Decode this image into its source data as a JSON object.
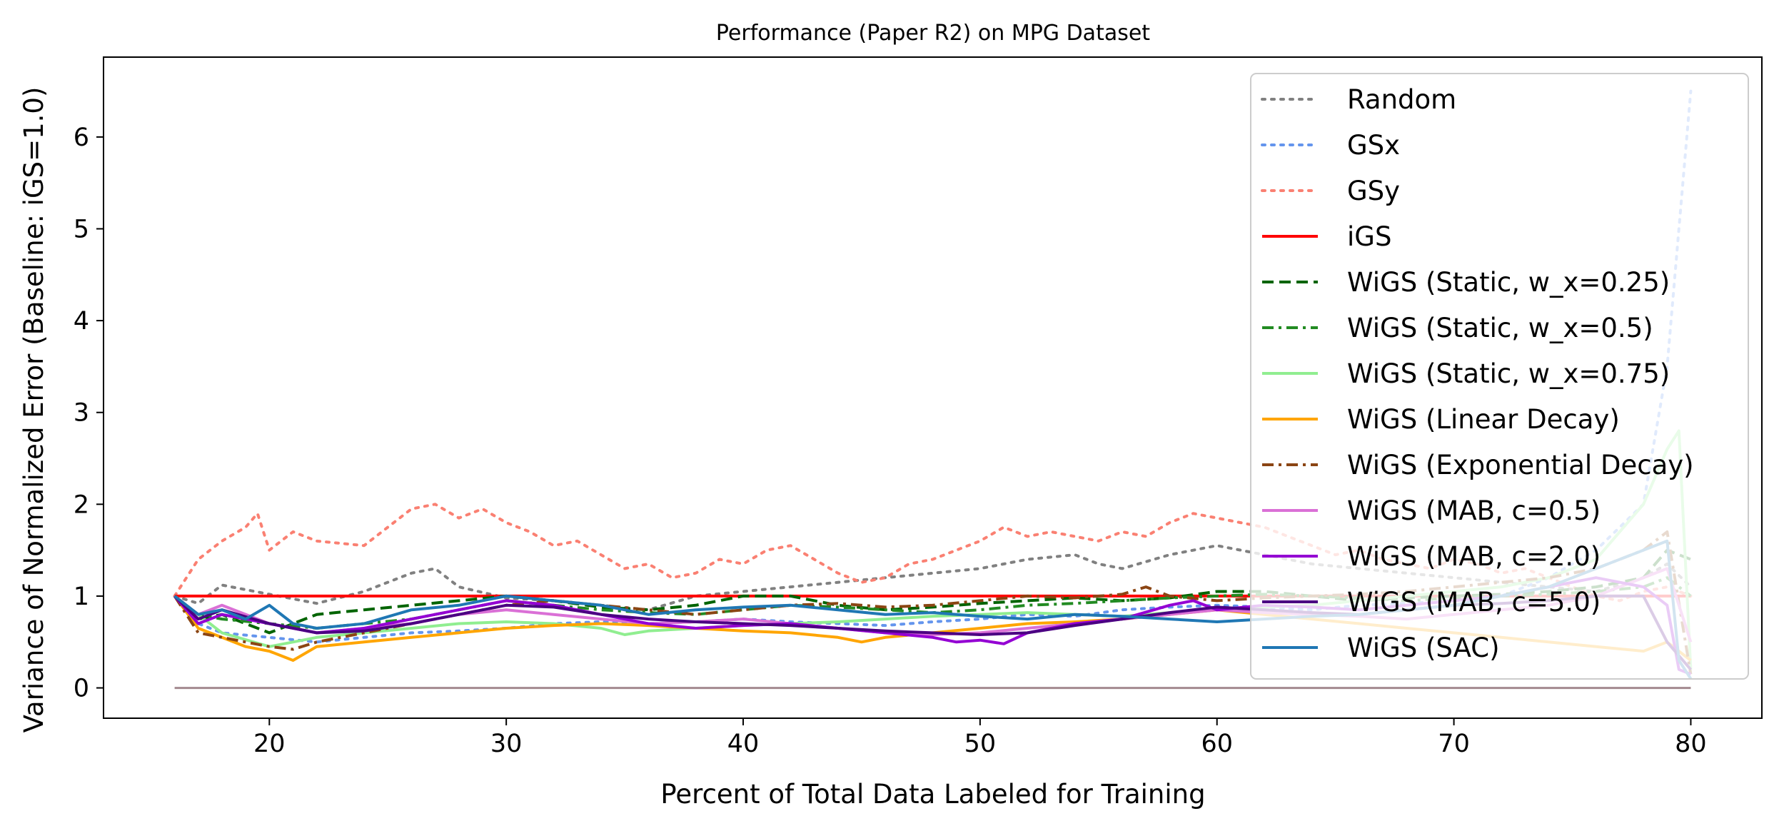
{
  "chart_data": {
    "type": "line",
    "title": "Performance (Paper R2) on MPG Dataset",
    "xlabel": "Percent of Total Data Labeled for Training",
    "ylabel": "Variance of Normalized Error (Baseline: iGS=1.0)",
    "xlim": [
      13,
      83
    ],
    "ylim": [
      -0.33,
      6.87
    ],
    "xticks": [
      20,
      30,
      40,
      50,
      60,
      70,
      80
    ],
    "yticks": [
      0,
      1,
      2,
      3,
      4,
      5,
      6
    ],
    "grid": false,
    "legend_position": "upper right",
    "series": [
      {
        "name": "Random",
        "color": "#808080",
        "style": "dotted",
        "x": [
          16,
          17,
          18,
          20,
          22,
          24,
          26,
          27,
          28,
          30,
          32,
          34,
          36,
          38,
          40,
          42,
          44,
          46,
          48,
          50,
          52,
          54,
          55,
          56,
          58,
          60,
          62,
          64,
          66,
          68,
          70,
          72,
          74,
          76,
          78,
          79,
          80
        ],
        "y": [
          1.0,
          0.92,
          1.12,
          1.02,
          0.92,
          1.05,
          1.25,
          1.3,
          1.1,
          0.98,
          0.95,
          0.9,
          0.85,
          1.0,
          1.05,
          1.1,
          1.15,
          1.2,
          1.25,
          1.3,
          1.4,
          1.45,
          1.35,
          1.3,
          1.45,
          1.55,
          1.45,
          1.35,
          1.3,
          1.25,
          1.2,
          1.15,
          1.1,
          1.05,
          1.2,
          1.35,
          1.1
        ]
      },
      {
        "name": "GSx",
        "color": "#6495ed",
        "style": "dotted",
        "x": [
          16,
          17,
          18,
          20,
          22,
          24,
          26,
          28,
          30,
          32,
          34,
          36,
          38,
          40,
          42,
          44,
          46,
          48,
          50,
          52,
          54,
          56,
          58,
          60,
          62,
          64,
          66,
          68,
          70,
          72,
          74,
          76,
          78,
          79,
          79.5,
          80
        ],
        "y": [
          1.0,
          0.7,
          0.6,
          0.55,
          0.5,
          0.55,
          0.6,
          0.62,
          0.65,
          0.7,
          0.72,
          0.7,
          0.72,
          0.75,
          0.72,
          0.7,
          0.68,
          0.72,
          0.75,
          0.8,
          0.78,
          0.85,
          0.88,
          0.9,
          0.88,
          0.85,
          0.9,
          0.92,
          0.95,
          1.0,
          1.2,
          1.5,
          2.0,
          3.5,
          5.0,
          6.5
        ]
      },
      {
        "name": "GSy",
        "color": "#fa8072",
        "style": "dotted",
        "x": [
          16,
          17,
          18,
          19,
          19.5,
          20,
          21,
          22,
          24,
          25,
          26,
          27,
          28,
          29,
          30,
          31,
          32,
          33,
          34,
          35,
          36,
          37,
          38,
          39,
          40,
          41,
          42,
          43,
          44,
          45,
          46,
          47,
          48,
          49,
          50,
          51,
          52,
          53,
          54,
          55,
          56,
          57,
          58,
          59,
          60,
          61,
          62,
          63,
          64,
          65,
          66,
          67,
          68,
          69,
          70,
          71,
          72,
          73,
          74,
          75,
          76,
          77,
          78,
          79,
          80
        ],
        "y": [
          1.0,
          1.4,
          1.6,
          1.75,
          1.9,
          1.5,
          1.7,
          1.6,
          1.55,
          1.75,
          1.95,
          2.0,
          1.85,
          1.95,
          1.8,
          1.7,
          1.55,
          1.6,
          1.45,
          1.3,
          1.35,
          1.2,
          1.25,
          1.4,
          1.35,
          1.5,
          1.55,
          1.4,
          1.25,
          1.15,
          1.2,
          1.35,
          1.4,
          1.5,
          1.6,
          1.75,
          1.65,
          1.7,
          1.65,
          1.6,
          1.7,
          1.65,
          1.8,
          1.9,
          1.85,
          1.8,
          1.75,
          1.65,
          1.55,
          1.45,
          1.5,
          1.4,
          1.35,
          1.3,
          1.4,
          1.35,
          1.25,
          1.3,
          1.2,
          1.1,
          1.0,
          0.95,
          1.05,
          1.1,
          1.0
        ]
      },
      {
        "name": "iGS",
        "color": "#ff0000",
        "style": "solid",
        "x": [
          16,
          80
        ],
        "y": [
          1.0,
          1.0
        ]
      },
      {
        "name": "WiGS (Static, w_x=0.25)",
        "color": "#006400",
        "style": "dashed",
        "x": [
          16,
          17,
          18,
          19,
          20,
          22,
          24,
          26,
          28,
          30,
          32,
          34,
          36,
          38,
          40,
          42,
          44,
          46,
          48,
          50,
          52,
          54,
          56,
          58,
          60,
          62,
          64,
          66,
          68,
          70,
          72,
          74,
          76,
          78,
          79,
          80
        ],
        "y": [
          1.0,
          0.75,
          0.8,
          0.7,
          0.6,
          0.8,
          0.85,
          0.9,
          0.95,
          1.0,
          0.95,
          0.88,
          0.85,
          0.9,
          1.0,
          1.0,
          0.9,
          0.85,
          0.88,
          0.92,
          0.95,
          0.98,
          0.95,
          0.98,
          1.05,
          1.05,
          1.0,
          0.95,
          0.98,
          1.0,
          1.02,
          1.05,
          1.1,
          1.2,
          1.5,
          1.4
        ]
      },
      {
        "name": "WiGS (Static, w_x=0.5)",
        "color": "#228b22",
        "style": "dashdot",
        "x": [
          16,
          17,
          18,
          20,
          22,
          24,
          26,
          28,
          30,
          32,
          34,
          36,
          38,
          40,
          42,
          44,
          46,
          48,
          50,
          52,
          54,
          56,
          58,
          60,
          62,
          64,
          66,
          68,
          70,
          72,
          74,
          76,
          78,
          79,
          80
        ],
        "y": [
          1.0,
          0.8,
          0.75,
          0.7,
          0.65,
          0.7,
          0.75,
          0.85,
          0.95,
          0.9,
          0.85,
          0.82,
          0.8,
          0.85,
          0.9,
          0.88,
          0.85,
          0.82,
          0.85,
          0.9,
          0.92,
          0.95,
          0.98,
          1.0,
          1.02,
          1.0,
          0.98,
          0.95,
          0.98,
          1.0,
          1.02,
          1.05,
          1.1,
          1.2,
          1.0
        ]
      },
      {
        "name": "WiGS (Static, w_x=0.75)",
        "color": "#90ee90",
        "style": "solid",
        "x": [
          16,
          17,
          18,
          20,
          21,
          22,
          24,
          26,
          28,
          30,
          32,
          34,
          35,
          36,
          38,
          40,
          42,
          44,
          46,
          48,
          50,
          52,
          54,
          56,
          58,
          60,
          62,
          64,
          66,
          68,
          70,
          72,
          74,
          76,
          78,
          79,
          79.5,
          80
        ],
        "y": [
          1.0,
          0.8,
          0.6,
          0.45,
          0.5,
          0.55,
          0.6,
          0.65,
          0.7,
          0.72,
          0.7,
          0.65,
          0.58,
          0.62,
          0.65,
          0.68,
          0.7,
          0.72,
          0.75,
          0.78,
          0.8,
          0.82,
          0.8,
          0.78,
          0.82,
          0.85,
          0.88,
          0.9,
          0.95,
          1.0,
          1.05,
          1.1,
          1.2,
          1.4,
          2.0,
          2.6,
          2.8,
          0.2
        ]
      },
      {
        "name": "WiGS (Linear Decay)",
        "color": "#ffa500",
        "style": "solid",
        "x": [
          16,
          17,
          18,
          19,
          20,
          21,
          22,
          24,
          26,
          28,
          30,
          32,
          34,
          36,
          38,
          40,
          42,
          44,
          45,
          46,
          48,
          50,
          52,
          54,
          56,
          58,
          60,
          62,
          64,
          66,
          68,
          70,
          72,
          74,
          76,
          78,
          79,
          80
        ],
        "y": [
          1.0,
          0.65,
          0.55,
          0.45,
          0.4,
          0.3,
          0.45,
          0.5,
          0.55,
          0.6,
          0.65,
          0.68,
          0.7,
          0.68,
          0.65,
          0.62,
          0.6,
          0.55,
          0.5,
          0.55,
          0.6,
          0.65,
          0.7,
          0.72,
          0.75,
          0.8,
          0.85,
          0.8,
          0.75,
          0.7,
          0.65,
          0.6,
          0.55,
          0.5,
          0.45,
          0.4,
          0.5,
          0.3
        ]
      },
      {
        "name": "WiGS (Exponential Decay)",
        "color": "#8b4513",
        "style": "dashdot",
        "x": [
          16,
          17,
          18,
          19,
          20,
          21,
          22,
          24,
          26,
          28,
          30,
          32,
          34,
          36,
          38,
          40,
          42,
          44,
          46,
          48,
          50,
          52,
          54,
          56,
          57,
          58,
          60,
          62,
          64,
          66,
          68,
          70,
          72,
          74,
          76,
          78,
          79,
          80
        ],
        "y": [
          1.0,
          0.6,
          0.55,
          0.5,
          0.45,
          0.42,
          0.5,
          0.6,
          0.7,
          0.8,
          0.9,
          0.95,
          0.9,
          0.85,
          0.8,
          0.85,
          0.9,
          0.92,
          0.88,
          0.9,
          0.95,
          1.0,
          0.98,
          1.02,
          1.1,
          1.0,
          0.95,
          0.98,
          1.0,
          1.02,
          1.05,
          1.1,
          1.15,
          1.2,
          1.3,
          1.5,
          1.7,
          0.15
        ]
      },
      {
        "name": "WiGS (MAB, c=0.5)",
        "color": "#da70d6",
        "style": "solid",
        "x": [
          16,
          17,
          18,
          20,
          22,
          24,
          26,
          28,
          30,
          32,
          34,
          36,
          38,
          40,
          42,
          44,
          46,
          48,
          50,
          52,
          54,
          56,
          58,
          60,
          62,
          64,
          66,
          68,
          70,
          72,
          74,
          76,
          78,
          79,
          80
        ],
        "y": [
          1.0,
          0.8,
          0.9,
          0.7,
          0.6,
          0.65,
          0.7,
          0.8,
          0.85,
          0.8,
          0.75,
          0.7,
          0.72,
          0.75,
          0.7,
          0.65,
          0.6,
          0.58,
          0.6,
          0.65,
          0.7,
          0.75,
          0.8,
          0.85,
          0.82,
          0.8,
          0.78,
          0.75,
          0.8,
          0.85,
          0.9,
          1.0,
          1.2,
          1.3,
          0.5
        ]
      },
      {
        "name": "WiGS (MAB, c=2.0)",
        "color": "#9400d3",
        "style": "solid",
        "x": [
          16,
          17,
          18,
          19,
          20,
          22,
          24,
          26,
          28,
          30,
          32,
          34,
          36,
          38,
          40,
          42,
          44,
          46,
          48,
          49,
          50,
          51,
          52,
          54,
          56,
          58,
          59,
          60,
          62,
          64,
          66,
          68,
          70,
          72,
          74,
          76,
          78,
          79,
          79.5,
          80
        ],
        "y": [
          1.0,
          0.7,
          0.8,
          0.75,
          0.7,
          0.6,
          0.65,
          0.75,
          0.85,
          0.95,
          0.9,
          0.8,
          0.7,
          0.65,
          0.68,
          0.7,
          0.65,
          0.6,
          0.55,
          0.5,
          0.52,
          0.48,
          0.6,
          0.7,
          0.75,
          0.9,
          0.95,
          0.85,
          0.9,
          0.88,
          0.85,
          0.9,
          0.95,
          1.0,
          1.1,
          1.2,
          1.1,
          0.9,
          0.2,
          0.15
        ]
      },
      {
        "name": "WiGS (MAB, c=5.0)",
        "color": "#4b0082",
        "style": "solid",
        "x": [
          16,
          17,
          18,
          20,
          22,
          24,
          26,
          28,
          30,
          32,
          34,
          36,
          38,
          40,
          42,
          44,
          46,
          48,
          50,
          52,
          54,
          56,
          58,
          60,
          62,
          64,
          66,
          68,
          70,
          72,
          74,
          76,
          78,
          79,
          80
        ],
        "y": [
          1.0,
          0.75,
          0.85,
          0.7,
          0.6,
          0.62,
          0.7,
          0.8,
          0.9,
          0.88,
          0.8,
          0.75,
          0.72,
          0.7,
          0.68,
          0.65,
          0.62,
          0.6,
          0.58,
          0.6,
          0.68,
          0.75,
          0.82,
          0.88,
          0.85,
          0.82,
          0.8,
          0.85,
          0.9,
          0.92,
          0.95,
          1.0,
          1.0,
          0.5,
          0.2
        ]
      },
      {
        "name": "WiGS (SAC)",
        "color": "#1f77b4",
        "style": "solid",
        "x": [
          16,
          17,
          18,
          19,
          20,
          21,
          22,
          24,
          26,
          28,
          30,
          32,
          34,
          36,
          38,
          40,
          42,
          44,
          46,
          48,
          50,
          52,
          54,
          56,
          58,
          60,
          62,
          64,
          66,
          68,
          70,
          72,
          74,
          76,
          78,
          79,
          79.5,
          80
        ],
        "y": [
          1.0,
          0.8,
          0.85,
          0.75,
          0.9,
          0.7,
          0.65,
          0.7,
          0.85,
          0.9,
          1.0,
          0.95,
          0.9,
          0.8,
          0.85,
          0.88,
          0.9,
          0.85,
          0.8,
          0.82,
          0.78,
          0.75,
          0.8,
          0.78,
          0.75,
          0.72,
          0.75,
          0.78,
          0.8,
          0.85,
          0.9,
          1.0,
          1.1,
          1.3,
          1.5,
          1.6,
          0.3,
          0.1
        ]
      }
    ],
    "flat_line": {
      "color": "#a38a8f",
      "x": [
        16,
        80
      ],
      "y": [
        0.0,
        0.0
      ]
    }
  }
}
